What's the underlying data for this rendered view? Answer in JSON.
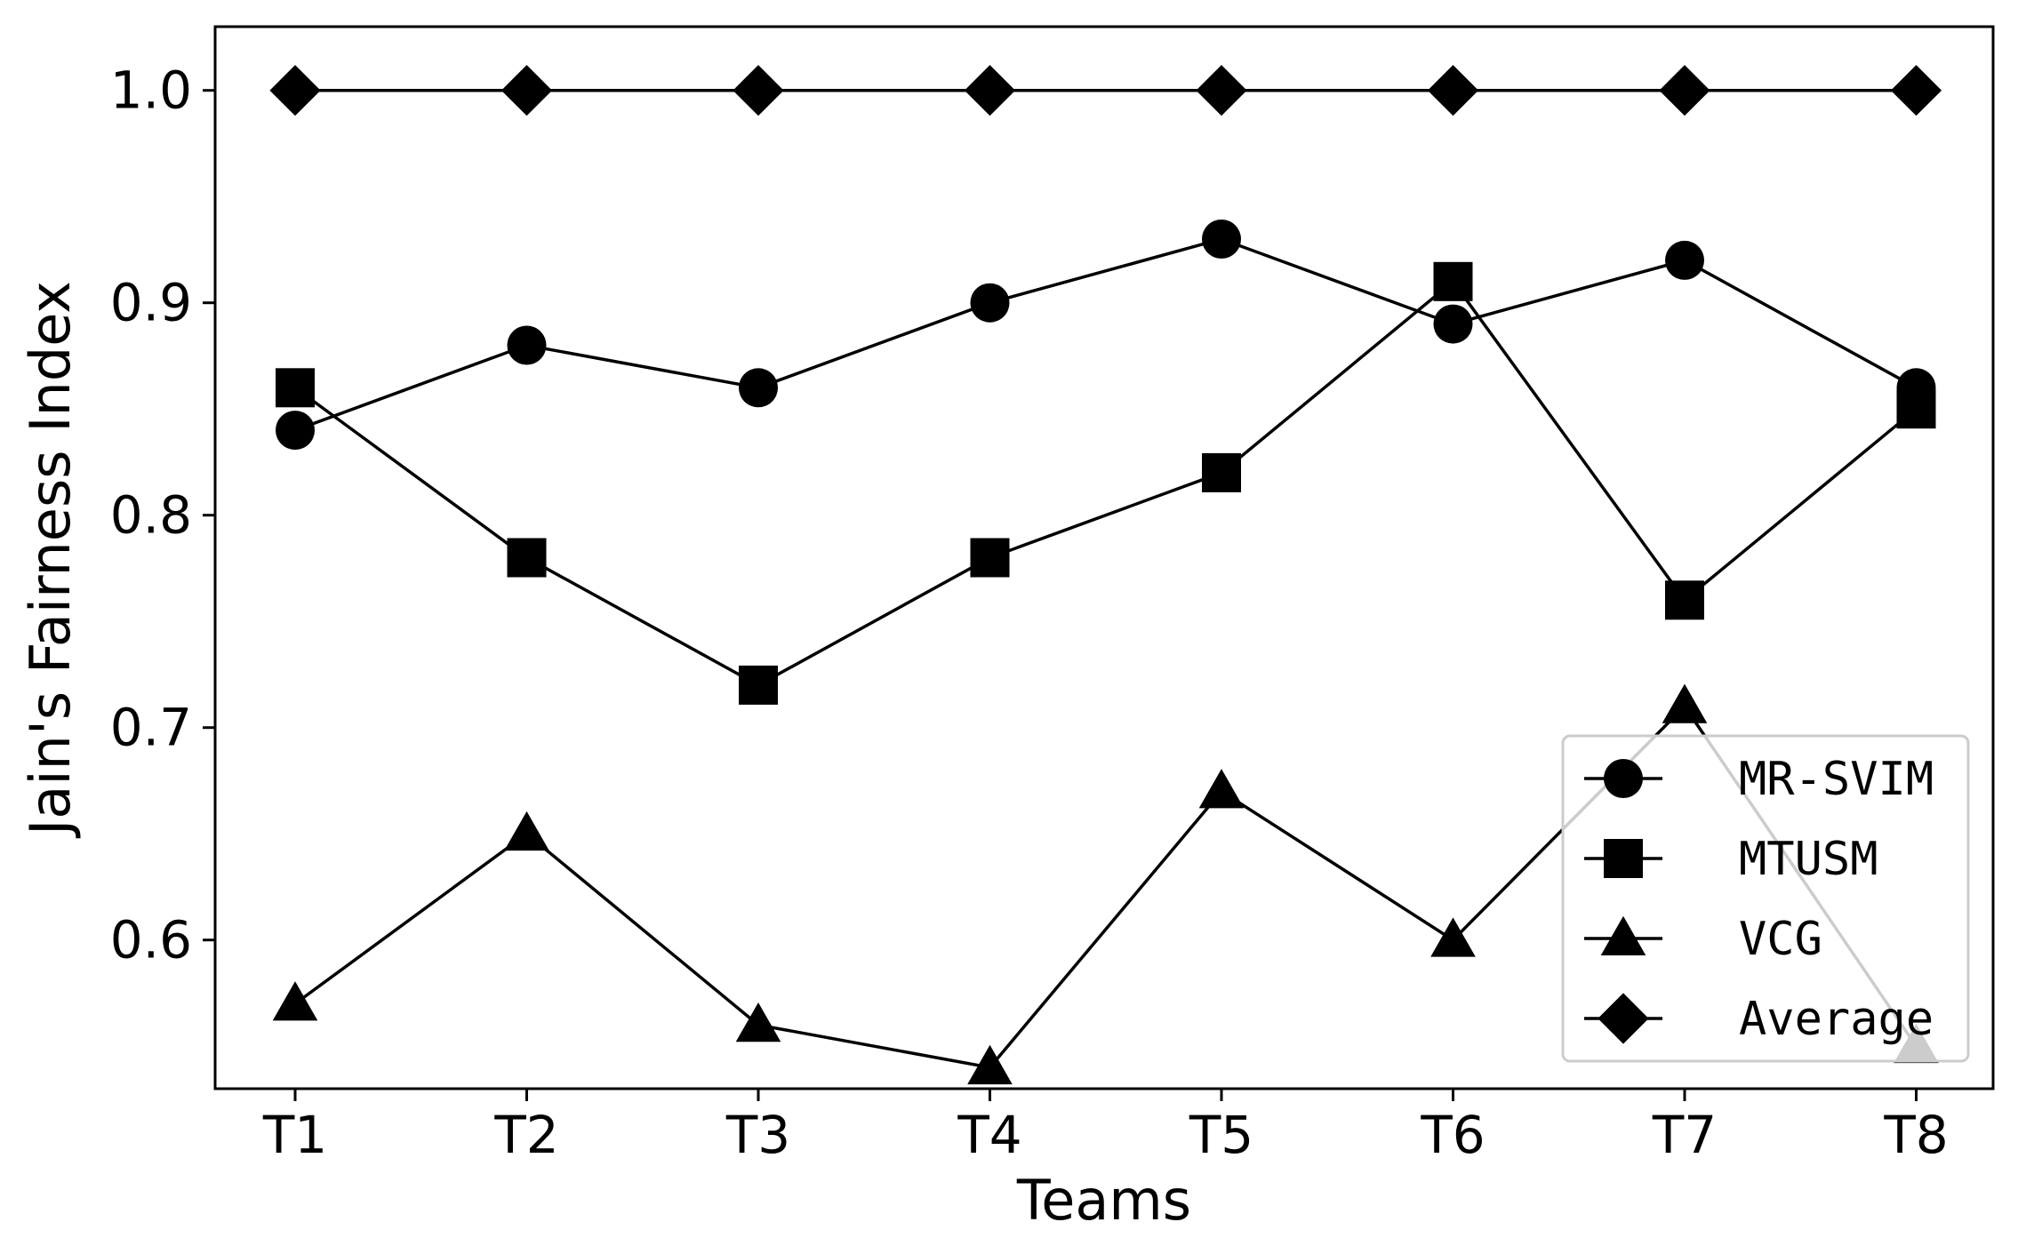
{
  "chart_data": {
    "type": "line",
    "xlabel": "Teams",
    "ylabel": "Jain's Fairness Index",
    "categories": [
      "T1",
      "T2",
      "T3",
      "T4",
      "T5",
      "T6",
      "T7",
      "T8"
    ],
    "yticks": [
      "0.6",
      "0.7",
      "0.8",
      "0.9",
      "1.0"
    ],
    "ylim": [
      0.53,
      1.03
    ],
    "grid": false,
    "legend_position": "lower-right",
    "series": [
      {
        "name": "MR-SVIM",
        "marker": "circle",
        "values": [
          0.84,
          0.88,
          0.86,
          0.9,
          0.93,
          0.89,
          0.92,
          0.86
        ]
      },
      {
        "name": "MTUSM",
        "marker": "square",
        "values": [
          0.86,
          0.78,
          0.72,
          0.78,
          0.82,
          0.91,
          0.76,
          0.85
        ]
      },
      {
        "name": "VCG",
        "marker": "triangle",
        "values": [
          0.57,
          0.65,
          0.56,
          0.54,
          0.67,
          0.6,
          0.71,
          0.55
        ]
      },
      {
        "name": "Average",
        "marker": "diamond",
        "values": [
          1.0,
          1.0,
          1.0,
          1.0,
          1.0,
          1.0,
          1.0,
          1.0
        ]
      }
    ],
    "colors": {
      "line": "#000000",
      "background": "#ffffff",
      "legend_border": "#cccccc"
    }
  }
}
